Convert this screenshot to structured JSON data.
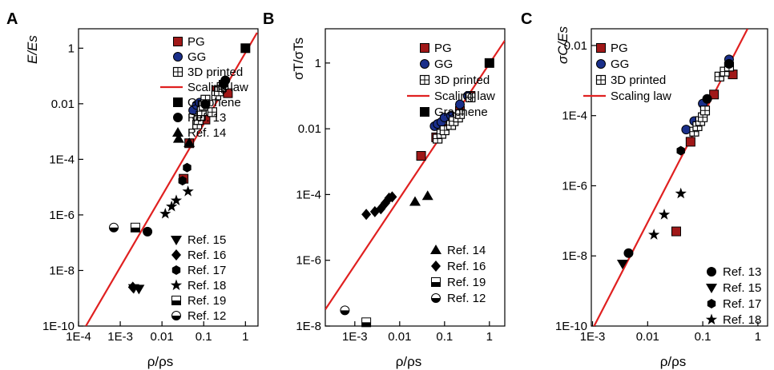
{
  "colors": {
    "pg": "#a01818",
    "gg": "#1a2f8a",
    "law": "#e02020",
    "black": "#000000"
  },
  "chart_data": [
    {
      "type": "scatter",
      "panel_letter": "A",
      "xlabel": "ρ/ρs",
      "ylabel": "E/Es",
      "log_x": true,
      "log_y": true,
      "xlim": [
        0.0001,
        2.0
      ],
      "ylim": [
        1e-10,
        5.0
      ],
      "xticks": [
        {
          "v": 0.0001,
          "label": "1E-4"
        },
        {
          "v": 0.001,
          "label": "1E-3"
        },
        {
          "v": 0.01,
          "label": "0.01"
        },
        {
          "v": 0.1,
          "label": "0.1"
        },
        {
          "v": 1,
          "label": "1"
        }
      ],
      "yticks": [
        {
          "v": 1e-10,
          "label": "1E-10"
        },
        {
          "v": 1e-08,
          "label": "1E-8"
        },
        {
          "v": 1e-06,
          "label": "1E-6"
        },
        {
          "v": 0.0001,
          "label": "1E-4"
        },
        {
          "v": 0.01,
          "label": "0.01"
        },
        {
          "v": 1,
          "label": "1"
        }
      ],
      "scaling_law": {
        "x": [
          0.00015,
          1.9
        ],
        "y": [
          1e-10,
          3.6
        ]
      },
      "legend_top": [
        {
          "label": "PG",
          "marker": "square-pg"
        },
        {
          "label": "GG",
          "marker": "circle-gg"
        },
        {
          "label": "3D printed",
          "marker": "printed"
        },
        {
          "label": "Scaling law",
          "marker": "line"
        },
        {
          "label": "Graphene",
          "marker": "square"
        },
        {
          "label": "Ref. 13",
          "marker": "circle"
        },
        {
          "label": "Ref. 14",
          "marker": "triangle-up"
        }
      ],
      "legend_bottom": [
        {
          "label": "Ref. 15",
          "marker": "triangle-down"
        },
        {
          "label": "Ref. 16",
          "marker": "diamond"
        },
        {
          "label": "Ref. 17",
          "marker": "hexagon"
        },
        {
          "label": "Ref. 18",
          "marker": "star"
        },
        {
          "label": "Ref. 19",
          "marker": "half-square"
        },
        {
          "label": "Ref. 12",
          "marker": "half-circle"
        }
      ],
      "series": [
        {
          "name": "PG",
          "marker": "square-pg",
          "points": [
            [
              0.033,
              2e-05
            ],
            [
              0.045,
              0.00038
            ],
            [
              0.11,
              0.0027
            ],
            [
              0.2,
              0.03
            ],
            [
              0.38,
              0.024
            ]
          ]
        },
        {
          "name": "GG",
          "marker": "circle-gg",
          "points": [
            [
              0.056,
              0.0058
            ],
            [
              0.068,
              0.009
            ],
            [
              0.08,
              0.011
            ],
            [
              0.105,
              0.01
            ]
          ]
        },
        {
          "name": "3D printed",
          "marker": "printed",
          "points": [
            [
              0.07,
              0.0018
            ],
            [
              0.075,
              0.0026
            ],
            [
              0.085,
              0.0037
            ],
            [
              0.09,
              0.0054
            ],
            [
              0.1,
              0.0085
            ],
            [
              0.11,
              0.014
            ],
            [
              0.16,
              0.005
            ],
            [
              0.2,
              0.02
            ],
            [
              0.23,
              0.028
            ],
            [
              0.27,
              0.04
            ],
            [
              0.3,
              0.048
            ]
          ]
        },
        {
          "name": "Graphene",
          "marker": "square",
          "points": [
            [
              1.0,
              1.0
            ]
          ]
        },
        {
          "name": "Ref. 13",
          "marker": "circle",
          "points": [
            [
              0.0045,
              2.5e-07
            ],
            [
              0.11,
              0.0095
            ],
            [
              0.3,
              0.052
            ],
            [
              0.33,
              0.07
            ]
          ]
        },
        {
          "name": "Ref. 14",
          "marker": "triangle-up",
          "points": [
            [
              0.025,
              0.00055
            ],
            [
              0.045,
              0.00039
            ]
          ]
        },
        {
          "name": "Ref. 15",
          "marker": "triangle-down",
          "points": [
            [
              0.0021,
              2.3e-09
            ],
            [
              0.0028,
              2.2e-09
            ]
          ]
        },
        {
          "name": "Ref. 16",
          "marker": "diamond",
          "points": [
            [
              0.002,
              2.5e-09
            ]
          ]
        },
        {
          "name": "Ref. 17",
          "marker": "hexagon",
          "points": [
            [
              0.031,
              1.7e-05
            ],
            [
              0.04,
              5e-05
            ]
          ]
        },
        {
          "name": "Ref. 18",
          "marker": "star",
          "points": [
            [
              0.012,
              1.1e-06
            ],
            [
              0.017,
              2e-06
            ],
            [
              0.022,
              3.3e-06
            ],
            [
              0.042,
              7e-06
            ]
          ]
        },
        {
          "name": "Ref. 19",
          "marker": "half-square",
          "points": [
            [
              0.0023,
              3.5e-07
            ]
          ]
        },
        {
          "name": "Ref. 12",
          "marker": "half-circle",
          "points": [
            [
              0.0007,
              3.5e-07
            ]
          ]
        }
      ]
    },
    {
      "type": "scatter",
      "panel_letter": "B",
      "xlabel": "ρ/ρs",
      "ylabel": "σT/σTs",
      "log_x": true,
      "log_y": true,
      "xlim": [
        0.00022,
        2.2
      ],
      "ylim": [
        1e-08,
        11.0
      ],
      "xticks": [
        {
          "v": 0.001,
          "label": "1E-3"
        },
        {
          "v": 0.01,
          "label": "0.01"
        },
        {
          "v": 0.1,
          "label": "0.1"
        },
        {
          "v": 1,
          "label": "1"
        }
      ],
      "yticks": [
        {
          "v": 1e-08,
          "label": "1E-8"
        },
        {
          "v": 1e-06,
          "label": "1E-6"
        },
        {
          "v": 0.0001,
          "label": "1E-4"
        },
        {
          "v": 0.01,
          "label": "0.01"
        },
        {
          "v": 1,
          "label": "1"
        }
      ],
      "scaling_law": {
        "x": [
          0.00022,
          2.2
        ],
        "y": [
          3.2e-08,
          4.8
        ]
      },
      "legend_top": [
        {
          "label": "PG",
          "marker": "square-pg"
        },
        {
          "label": "GG",
          "marker": "circle-gg"
        },
        {
          "label": "3D printed",
          "marker": "printed"
        },
        {
          "label": "Scaling law",
          "marker": "line"
        },
        {
          "label": "Graphene",
          "marker": "square"
        }
      ],
      "legend_bottom": [
        {
          "label": "Ref. 14",
          "marker": "triangle-up"
        },
        {
          "label": "Ref. 16",
          "marker": "diamond"
        },
        {
          "label": "Ref. 19",
          "marker": "half-square"
        },
        {
          "label": "Ref. 12",
          "marker": "half-circle"
        }
      ],
      "series": [
        {
          "name": "PG",
          "marker": "square-pg",
          "points": [
            [
              0.03,
              0.0015
            ],
            [
              0.065,
              0.0055
            ],
            [
              0.1,
              0.01
            ],
            [
              0.14,
              0.02
            ],
            [
              0.22,
              0.035
            ],
            [
              0.38,
              0.1
            ]
          ]
        },
        {
          "name": "GG",
          "marker": "circle-gg",
          "points": [
            [
              0.06,
              0.012
            ],
            [
              0.07,
              0.014
            ],
            [
              0.085,
              0.016
            ],
            [
              0.1,
              0.022
            ],
            [
              0.14,
              0.025
            ],
            [
              0.22,
              0.055
            ],
            [
              0.33,
              0.1
            ]
          ]
        },
        {
          "name": "3D printed",
          "marker": "printed",
          "points": [
            [
              0.07,
              0.005
            ],
            [
              0.085,
              0.007
            ],
            [
              0.1,
              0.009
            ],
            [
              0.14,
              0.013
            ],
            [
              0.16,
              0.017
            ],
            [
              0.2,
              0.022
            ],
            [
              0.22,
              0.028
            ],
            [
              0.38,
              0.09
            ]
          ]
        },
        {
          "name": "Graphene",
          "marker": "square",
          "points": [
            [
              1.0,
              1.0
            ]
          ]
        },
        {
          "name": "Ref. 14",
          "marker": "triangle-up",
          "points": [
            [
              0.022,
              6e-05
            ],
            [
              0.042,
              9e-05
            ]
          ]
        },
        {
          "name": "Ref. 16",
          "marker": "diamond",
          "points": [
            [
              0.0018,
              2.5e-05
            ],
            [
              0.0028,
              3e-05
            ],
            [
              0.0038,
              3.7e-05
            ],
            [
              0.0048,
              5.5e-05
            ],
            [
              0.0058,
              7.8e-05
            ],
            [
              0.0068,
              8.5e-05
            ]
          ]
        },
        {
          "name": "Ref. 19",
          "marker": "half-square",
          "points": [
            [
              0.0018,
              1.3e-08
            ]
          ]
        },
        {
          "name": "Ref. 12",
          "marker": "half-circle",
          "points": [
            [
              0.0006,
              3e-08
            ]
          ]
        }
      ]
    },
    {
      "type": "scatter",
      "panel_letter": "C",
      "xlabel": "ρ/ρs",
      "ylabel": "σC/Es",
      "log_x": true,
      "log_y": true,
      "xlim": [
        0.00095,
        1.5
      ],
      "ylim": [
        1e-10,
        0.03
      ],
      "xticks": [
        {
          "v": 0.001,
          "label": "1E-3"
        },
        {
          "v": 0.01,
          "label": "0.01"
        },
        {
          "v": 0.1,
          "label": "0.1"
        },
        {
          "v": 1,
          "label": "1"
        }
      ],
      "yticks": [
        {
          "v": 1e-10,
          "label": "1E-10"
        },
        {
          "v": 1e-08,
          "label": "1E-8"
        },
        {
          "v": 1e-06,
          "label": "1E-6"
        },
        {
          "v": 0.0001,
          "label": "1E-4"
        },
        {
          "v": 0.01,
          "label": "0.01"
        }
      ],
      "scaling_law": {
        "x": [
          0.00095,
          0.65
        ],
        "y": [
          7e-11,
          0.03
        ]
      },
      "legend_top": [
        {
          "label": "PG",
          "marker": "square-pg"
        },
        {
          "label": "GG",
          "marker": "circle-gg"
        },
        {
          "label": "3D printed",
          "marker": "printed"
        },
        {
          "label": "Scaling law",
          "marker": "line"
        }
      ],
      "legend_bottom": [
        {
          "label": "Ref. 13",
          "marker": "circle"
        },
        {
          "label": "Ref. 15",
          "marker": "triangle-down"
        },
        {
          "label": "Ref. 17",
          "marker": "hexagon"
        },
        {
          "label": "Ref. 18",
          "marker": "star"
        }
      ],
      "series": [
        {
          "name": "PG",
          "marker": "square-pg",
          "points": [
            [
              0.033,
              5e-08
            ],
            [
              0.06,
              1.8e-05
            ],
            [
              0.16,
              0.0004
            ],
            [
              0.35,
              0.0015
            ]
          ]
        },
        {
          "name": "GG",
          "marker": "circle-gg",
          "points": [
            [
              0.05,
              4e-05
            ],
            [
              0.07,
              7e-05
            ],
            [
              0.1,
              0.00022
            ],
            [
              0.3,
              0.004
            ]
          ]
        },
        {
          "name": "3D printed",
          "marker": "printed",
          "points": [
            [
              0.07,
              3.5e-05
            ],
            [
              0.08,
              5e-05
            ],
            [
              0.09,
              7e-05
            ],
            [
              0.1,
              9e-05
            ],
            [
              0.11,
              0.00014
            ],
            [
              0.2,
              0.0013
            ],
            [
              0.25,
              0.0018
            ],
            [
              0.3,
              0.0025
            ]
          ]
        },
        {
          "name": "Ref. 13",
          "marker": "circle",
          "points": [
            [
              0.0045,
              1.2e-08
            ],
            [
              0.12,
              0.0003
            ],
            [
              0.3,
              0.003
            ]
          ]
        },
        {
          "name": "Ref. 15",
          "marker": "triangle-down",
          "points": [
            [
              0.0035,
              6e-09
            ]
          ]
        },
        {
          "name": "Ref. 17",
          "marker": "hexagon",
          "points": [
            [
              0.04,
              1e-05
            ]
          ]
        },
        {
          "name": "Ref. 18",
          "marker": "star",
          "points": [
            [
              0.013,
              4e-08
            ],
            [
              0.02,
              1.5e-07
            ],
            [
              0.04,
              6e-07
            ]
          ]
        }
      ]
    }
  ]
}
